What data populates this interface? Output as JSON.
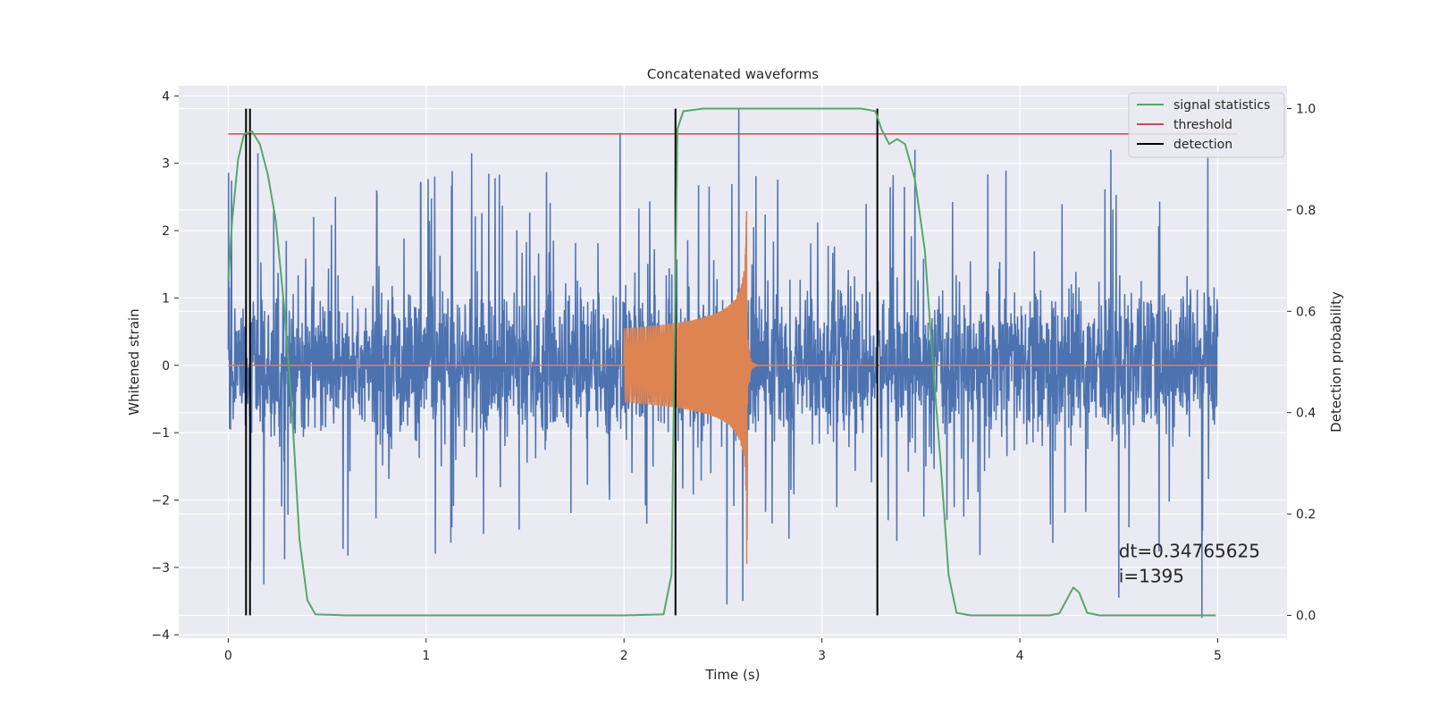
{
  "chart_data": {
    "type": "line",
    "title": "Concatenated waveforms",
    "xlabel": "Time (s)",
    "ylabel_left": "Whitened strain",
    "ylabel_right": "Detection probability",
    "xlim": [
      -0.25,
      5.35
    ],
    "ylim_left": [
      -4.05,
      4.15
    ],
    "ylim_right": [
      -0.045,
      1.045
    ],
    "xticks": [
      0,
      1,
      2,
      3,
      4,
      5
    ],
    "xtick_labels": [
      "0",
      "1",
      "2",
      "3",
      "4",
      "5"
    ],
    "yticks_left": [
      -4,
      -3,
      -2,
      -1,
      0,
      1,
      2,
      3,
      4
    ],
    "ytick_labels_left": [
      "−4",
      "−3",
      "−2",
      "−1",
      "0",
      "1",
      "2",
      "3",
      "4"
    ],
    "yticks_right": [
      0.0,
      0.2,
      0.4,
      0.6,
      0.8,
      1.0
    ],
    "ytick_labels_right": [
      "0.0",
      "0.2",
      "0.4",
      "0.6",
      "0.8",
      "1.0"
    ],
    "grid": true,
    "legend_position": "top-right",
    "series": [
      {
        "name": "",
        "axis": "left",
        "kind": "noise",
        "color": "#4c72b0",
        "x_range": [
          0,
          5
        ],
        "core_amplitude": 0.8,
        "peak_envelope": 2.9,
        "peaks": [
          {
            "x": 0.15,
            "y": 3.15
          },
          {
            "x": 0.18,
            "y": -3.25
          },
          {
            "x": 1.98,
            "y": 3.45
          },
          {
            "x": 2.58,
            "y": 3.8
          },
          {
            "x": 2.6,
            "y": -3.5
          },
          {
            "x": 2.52,
            "y": -3.55
          },
          {
            "x": 4.5,
            "y": -3.45
          },
          {
            "x": 4.92,
            "y": -3.75
          },
          {
            "x": 4.95,
            "y": 3.1
          },
          {
            "x": 1.23,
            "y": 3.15
          },
          {
            "x": 3.47,
            "y": 3.2
          },
          {
            "x": 4.46,
            "y": 3.2
          }
        ]
      },
      {
        "name": "",
        "axis": "left",
        "kind": "chirp",
        "color": "#dd8452",
        "start": 2.0,
        "merger": 2.62,
        "start_amplitude": 0.55,
        "peak_amplitude": 2.3,
        "min_value": -2.95,
        "baseline": 0.0
      },
      {
        "name": "signal statistics",
        "axis": "right",
        "color": "#55a868",
        "points": [
          [
            0.0,
            0.66
          ],
          [
            0.02,
            0.78
          ],
          [
            0.05,
            0.9
          ],
          [
            0.08,
            0.95
          ],
          [
            0.12,
            0.955
          ],
          [
            0.16,
            0.93
          ],
          [
            0.2,
            0.87
          ],
          [
            0.24,
            0.78
          ],
          [
            0.28,
            0.62
          ],
          [
            0.32,
            0.42
          ],
          [
            0.36,
            0.15
          ],
          [
            0.4,
            0.03
          ],
          [
            0.44,
            0.002
          ],
          [
            0.6,
            0.0
          ],
          [
            2.0,
            0.0
          ],
          [
            2.2,
            0.002
          ],
          [
            2.24,
            0.08
          ],
          [
            2.27,
            0.96
          ],
          [
            2.3,
            0.995
          ],
          [
            2.4,
            1.0
          ],
          [
            3.2,
            1.0
          ],
          [
            3.27,
            0.995
          ],
          [
            3.3,
            0.96
          ],
          [
            3.34,
            0.93
          ],
          [
            3.38,
            0.94
          ],
          [
            3.42,
            0.93
          ],
          [
            3.47,
            0.86
          ],
          [
            3.52,
            0.72
          ],
          [
            3.56,
            0.5
          ],
          [
            3.6,
            0.3
          ],
          [
            3.64,
            0.08
          ],
          [
            3.68,
            0.005
          ],
          [
            3.75,
            0.0
          ],
          [
            4.15,
            0.0
          ],
          [
            4.2,
            0.004
          ],
          [
            4.27,
            0.055
          ],
          [
            4.3,
            0.045
          ],
          [
            4.34,
            0.005
          ],
          [
            4.4,
            0.0
          ],
          [
            4.99,
            0.0
          ]
        ]
      },
      {
        "name": "threshold",
        "axis": "right",
        "color": "#c44e52",
        "value": 0.95,
        "x_range": [
          0,
          5.1
        ]
      },
      {
        "name": "detection",
        "axis": "right",
        "color": "#000000",
        "x": [
          0.09,
          0.11,
          2.26,
          3.28
        ],
        "y_range": [
          0,
          1
        ]
      }
    ],
    "annotations": [
      {
        "text": "dt=0.34765625",
        "x": 4.5,
        "y": -2.85
      },
      {
        "text": " i=1395",
        "x": 4.5,
        "y": -3.22
      }
    ]
  }
}
